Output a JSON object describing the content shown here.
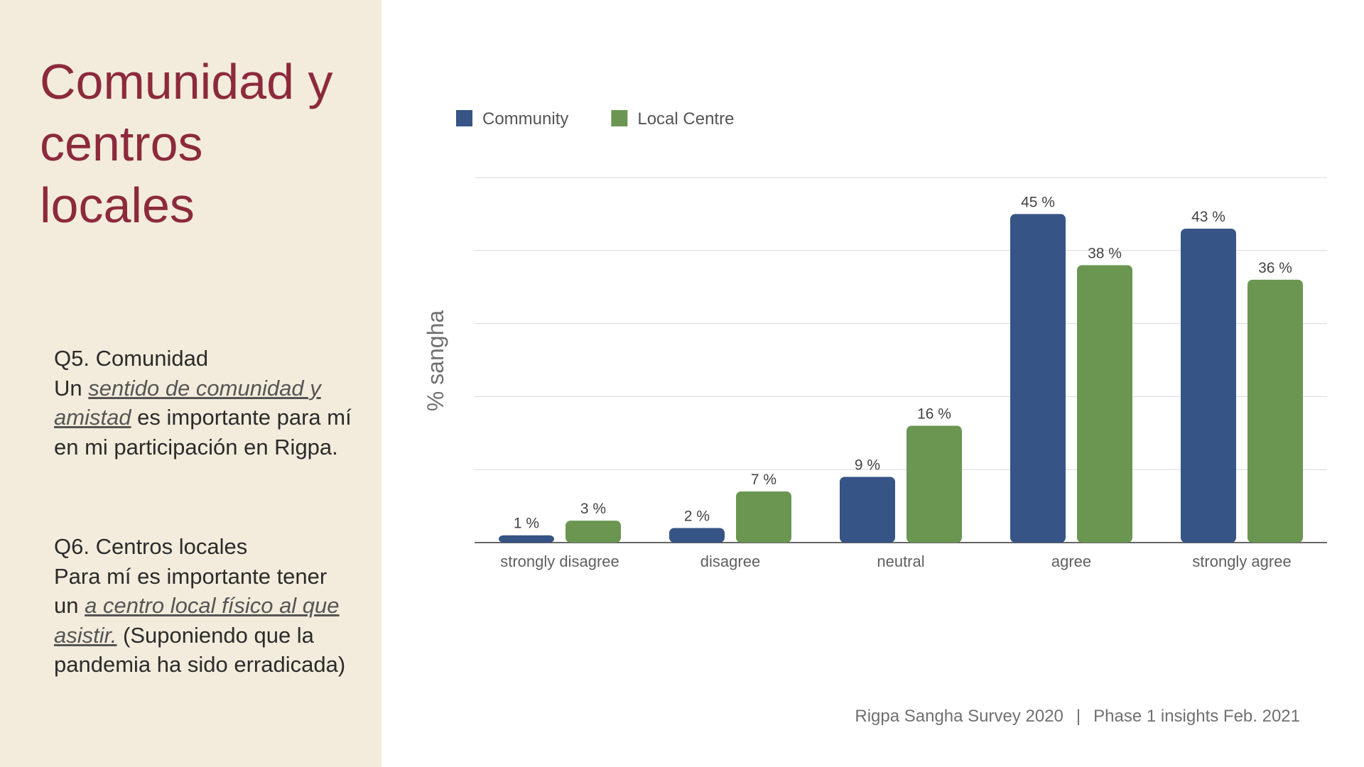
{
  "title": "Comunidad y centros locales",
  "q5": {
    "heading": "Q5. Comunidad",
    "pre": "Un ",
    "emphasis": "sentido de comunidad y amistad",
    "post": " es importante para mí en mi participación en Rigpa."
  },
  "q6": {
    "heading": "Q6. Centros locales",
    "pre": "Para mí es importante tener un ",
    "emphasis": "a centro local físico al que asistir.",
    "post": " (Suponiendo que la pandemia ha sido erradicada)"
  },
  "footer": {
    "survey": "Rigpa Sangha Survey 2020",
    "separator": "|",
    "phase": "Phase 1 insights Feb. 2021"
  },
  "colors": {
    "community": "#365486",
    "local_centre": "#6a9651",
    "title": "#8c2a3c",
    "panel": "#f3ecdc"
  },
  "chart_data": {
    "type": "bar",
    "title": "",
    "xlabel": "",
    "ylabel": "% sangha",
    "ylim": [
      0,
      50
    ],
    "grid": true,
    "legend_position": "top-left",
    "categories": [
      "strongly disagree",
      "disagree",
      "neutral",
      "agree",
      "strongly agree"
    ],
    "series": [
      {
        "name": "Community",
        "color": "#365486",
        "values": [
          1,
          2,
          9,
          45,
          43
        ],
        "labels": [
          "1 %",
          "2 %",
          "9 %",
          "45 %",
          "43 %"
        ]
      },
      {
        "name": "Local Centre",
        "color": "#6a9651",
        "values": [
          3,
          7,
          16,
          38,
          36
        ],
        "labels": [
          "3 %",
          "7 %",
          "16 %",
          "38 %",
          "36 %"
        ]
      }
    ]
  }
}
